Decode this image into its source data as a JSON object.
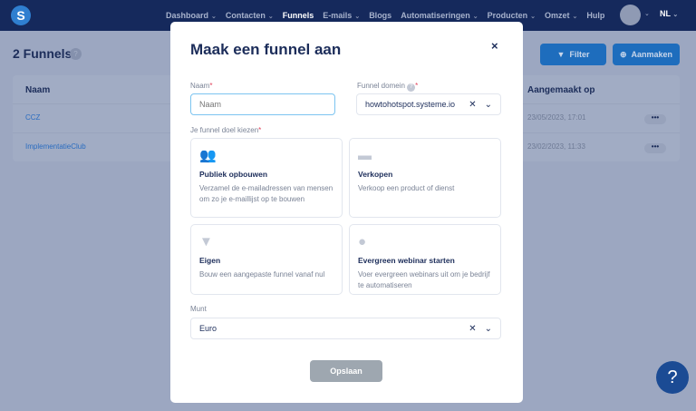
{
  "nav": {
    "logo": "S",
    "items": [
      {
        "label": "Dashboard",
        "caret": true
      },
      {
        "label": "Contacten",
        "caret": true
      },
      {
        "label": "Funnels",
        "caret": false,
        "active": true
      },
      {
        "label": "E-mails",
        "caret": true
      },
      {
        "label": "Blogs",
        "caret": false
      },
      {
        "label": "Automatiseringen",
        "caret": true
      },
      {
        "label": "Producten",
        "caret": true
      },
      {
        "label": "Omzet",
        "caret": true
      },
      {
        "label": "Hulp",
        "caret": false
      }
    ],
    "lang": "NL"
  },
  "page": {
    "title": "2 Funnels",
    "filter_label": "Filter",
    "create_label": "Aanmaken",
    "help": "?"
  },
  "table": {
    "headers": [
      "Naam",
      "Aangemaakt op"
    ],
    "rows": [
      {
        "name": "CCZ",
        "created": "23/05/2023, 17:01"
      },
      {
        "name": "ImplementatieClub",
        "created": "23/02/2023, 11:33"
      }
    ],
    "actions": "•••"
  },
  "modal": {
    "title": "Maak een funnel aan",
    "close": "×",
    "name_label": "Naam",
    "name_placeholder": "Naam",
    "name_value": "",
    "domain_label": "Funnel domein",
    "domain_value": "howtohotspot.systeme.io",
    "goal_label": "Je funnel doel kiezen",
    "goals": [
      {
        "icon": "people-icon",
        "title": "Publiek opbouwen",
        "desc": "Verzamel de e-mailadressen van mensen om zo je e-maillijst op te bouwen"
      },
      {
        "icon": "shop-icon",
        "title": "Verkopen",
        "desc": "Verkoop een product of dienst"
      },
      {
        "icon": "funnel-icon",
        "title": "Eigen",
        "desc": "Bouw een aangepaste funnel vanaf nul"
      },
      {
        "icon": "webinar-icon",
        "title": "Evergreen webinar starten",
        "desc": "Voer evergreen webinars uit om je bedrijf te automatiseren"
      }
    ],
    "currency_label": "Munt",
    "currency_value": "Euro",
    "save_label": "Opslaan"
  },
  "colors": {
    "navbar": "#15295c",
    "primary": "#1e6dbd",
    "title": "#1c2d5a",
    "required": "#e0435b"
  }
}
